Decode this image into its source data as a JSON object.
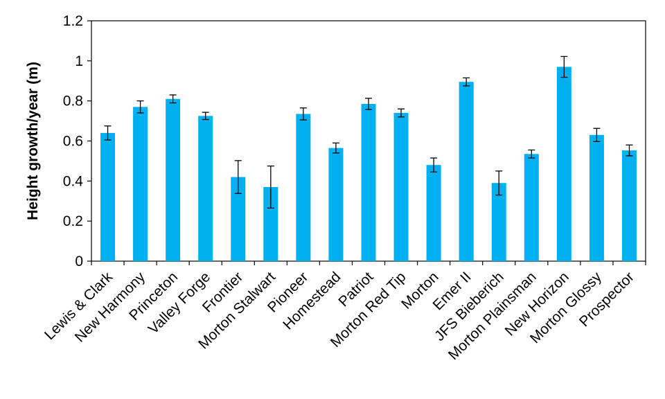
{
  "chart_data": {
    "type": "bar",
    "title": "",
    "xlabel": "",
    "ylabel": "Height growth/year (m)",
    "ylim": [
      0,
      1.2
    ],
    "yticks": [
      "0",
      "0.2",
      "0.4",
      "0.6",
      "0.8",
      "1",
      "1.2"
    ],
    "ytick_values": [
      0,
      0.2,
      0.4,
      0.6,
      0.8,
      1.0,
      1.2
    ],
    "grid": false,
    "legend": "none",
    "bar_color": "#00B0F0",
    "error_bar_color": "#000000",
    "categories": [
      "Lewis & Clark",
      "New Harmony",
      "Princeton",
      "Valley Forge",
      "Frontier",
      "Morton Stalwart",
      "Pioneer",
      "Homestead",
      "Patriot",
      "Morton Red Tip",
      "Morton",
      "Emer II",
      "JFS Bieberich",
      "Morton Plainsman",
      "New Horizon",
      "Morton Glossy",
      "Prospector"
    ],
    "values": [
      0.64,
      0.77,
      0.81,
      0.725,
      0.42,
      0.37,
      0.735,
      0.565,
      0.785,
      0.74,
      0.48,
      0.895,
      0.39,
      0.535,
      0.97,
      0.63,
      0.553
    ],
    "errors": [
      0.035,
      0.03,
      0.02,
      0.018,
      0.082,
      0.105,
      0.03,
      0.025,
      0.028,
      0.02,
      0.035,
      0.02,
      0.06,
      0.02,
      0.052,
      0.033,
      0.027
    ]
  }
}
